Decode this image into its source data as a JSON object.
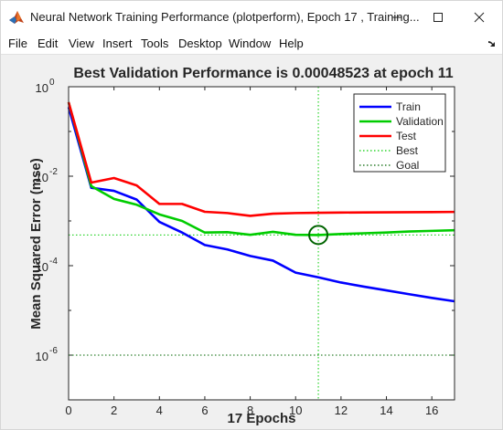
{
  "window": {
    "title": "Neural Network Training Performance (plotperform), Epoch 17 , Training..."
  },
  "menubar": {
    "items": [
      {
        "label": "File"
      },
      {
        "label": "Edit"
      },
      {
        "label": "View"
      },
      {
        "label": "Insert"
      },
      {
        "label": "Tools"
      },
      {
        "label": "Desktop"
      },
      {
        "label": "Window"
      },
      {
        "label": "Help"
      }
    ]
  },
  "icons": {
    "app": "matlab-icon",
    "minimize": "minimize-icon",
    "maximize": "maximize-icon",
    "close": "close-icon",
    "dock": "dock-arrow-icon"
  },
  "chart_data": {
    "type": "line",
    "title": "Best Validation Performance is 0.00048523 at epoch 11",
    "xlabel": "17 Epochs",
    "ylabel": "Mean Squared Error  (mse)",
    "xlim": [
      0,
      17
    ],
    "ylim_log10": [
      -7,
      0
    ],
    "yscale": "log",
    "xticks": [
      "0",
      "2",
      "4",
      "6",
      "8",
      "10",
      "12",
      "14",
      "16"
    ],
    "yticks": [
      {
        "base": "10",
        "exp": "0"
      },
      {
        "base": "10",
        "exp": "-2"
      },
      {
        "base": "10",
        "exp": "-4"
      },
      {
        "base": "10",
        "exp": "-6"
      }
    ],
    "legend_position": "top-right",
    "x": [
      0,
      1,
      2,
      3,
      4,
      5,
      6,
      7,
      8,
      9,
      10,
      11,
      12,
      13,
      14,
      15,
      16,
      17
    ],
    "series": [
      {
        "name": "Train",
        "color": "#0000ff",
        "style": "solid",
        "values": [
          0.35,
          0.0055,
          0.0047,
          0.003,
          0.00095,
          0.00055,
          0.00029,
          0.00023,
          0.000165,
          0.00013,
          7e-05,
          5.5e-05,
          4.2e-05,
          3.4e-05,
          2.8e-05,
          2.3e-05,
          1.9e-05,
          1.6e-05
        ]
      },
      {
        "name": "Validation",
        "color": "#00cc00",
        "style": "solid",
        "values": [
          0.45,
          0.006,
          0.0031,
          0.0023,
          0.0014,
          0.001,
          0.00055,
          0.00056,
          0.00049,
          0.00057,
          0.00049,
          0.000485,
          0.00051,
          0.00053,
          0.00055,
          0.00058,
          0.0006,
          0.00062
        ]
      },
      {
        "name": "Test",
        "color": "#ff0000",
        "style": "solid",
        "values": [
          0.45,
          0.0072,
          0.0091,
          0.0062,
          0.0024,
          0.0024,
          0.0016,
          0.0015,
          0.0013,
          0.00145,
          0.0015,
          0.00152,
          0.00154,
          0.00155,
          0.00156,
          0.00157,
          0.00158,
          0.00159
        ]
      },
      {
        "name": "Best",
        "color": "#00cc00",
        "style": "dotted",
        "best_epoch": 11,
        "best_value": 0.00048523
      },
      {
        "name": "Goal",
        "color": "#006400",
        "style": "dotted",
        "value": 1e-06
      }
    ]
  }
}
